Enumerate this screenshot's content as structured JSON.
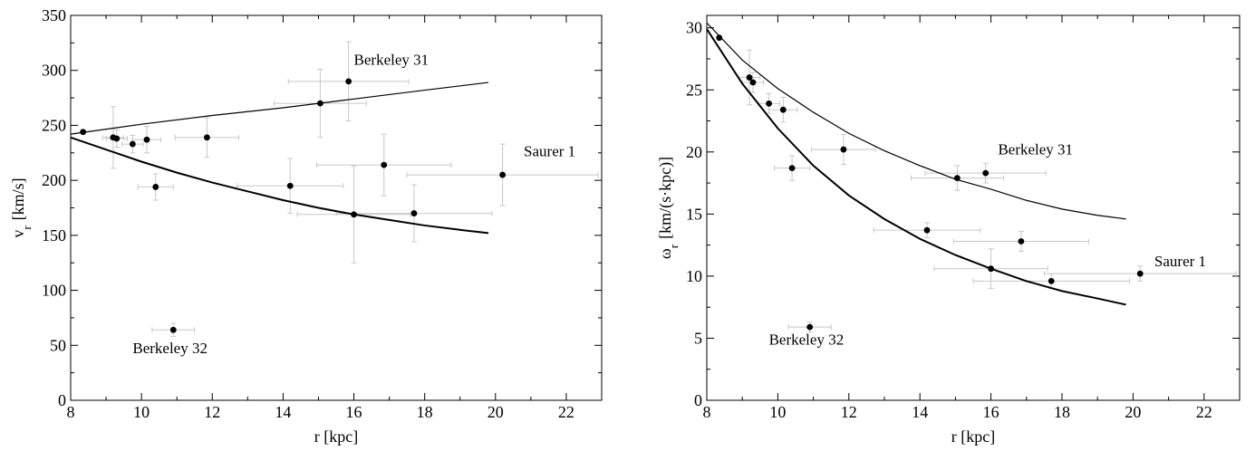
{
  "chart_data": [
    {
      "type": "scatter",
      "xlabel": "r [kpc]",
      "ylabel_main": "v",
      "ylabel_sub": "r",
      "ylabel_unit": "[km/s]",
      "xlim": [
        8,
        23
      ],
      "ylim": [
        0,
        350
      ],
      "x_ticks": [
        8,
        10,
        12,
        14,
        16,
        18,
        20,
        22
      ],
      "y_ticks": [
        0,
        50,
        100,
        150,
        200,
        250,
        300,
        350
      ],
      "grid": false,
      "points": [
        {
          "x": 8.35,
          "y": 244,
          "xerr": 0.0,
          "yerr": 0
        },
        {
          "x": 9.2,
          "y": 239,
          "xerr": 0.3,
          "yerr": 28
        },
        {
          "x": 9.3,
          "y": 238,
          "xerr": 0.3,
          "yerr": 8
        },
        {
          "x": 9.75,
          "y": 233,
          "xerr": 0.3,
          "yerr": 8
        },
        {
          "x": 10.15,
          "y": 237,
          "xerr": 0.4,
          "yerr": 12
        },
        {
          "x": 10.4,
          "y": 194,
          "xerr": 0.5,
          "yerr": 12
        },
        {
          "x": 10.9,
          "y": 64,
          "xerr": 0.6,
          "yerr": 6
        },
        {
          "x": 11.85,
          "y": 239,
          "xerr": 0.9,
          "yerr": 18
        },
        {
          "x": 14.2,
          "y": 195,
          "xerr": 1.5,
          "yerr": 25
        },
        {
          "x": 15.05,
          "y": 270,
          "xerr": 1.3,
          "yerr": 31
        },
        {
          "x": 15.85,
          "y": 290,
          "xerr": 1.7,
          "yerr": 36
        },
        {
          "x": 16.0,
          "y": 169,
          "xerr": 1.6,
          "yerr": 44
        },
        {
          "x": 16.85,
          "y": 214,
          "xerr": 1.9,
          "yerr": 28
        },
        {
          "x": 17.7,
          "y": 170,
          "xerr": 2.2,
          "yerr": 26
        },
        {
          "x": 20.2,
          "y": 205,
          "xerr": 2.7,
          "yerr": 28
        }
      ],
      "curves": [
        {
          "kind": "thin",
          "x": [
            8.0,
            10.0,
            12.0,
            14.0,
            16.0,
            18.0,
            19.8
          ],
          "y": [
            242,
            251,
            259,
            266,
            274,
            282,
            289
          ]
        },
        {
          "kind": "thick",
          "x": [
            8.0,
            9.0,
            10.0,
            11.0,
            12.0,
            13.0,
            14.0,
            15.0,
            16.0,
            17.0,
            18.0,
            19.0,
            19.8
          ],
          "y": [
            239,
            228,
            217,
            207,
            198,
            190,
            182,
            175,
            169,
            164,
            159,
            155,
            152
          ]
        }
      ],
      "annotations": [
        {
          "text": "Berkeley 31",
          "x": 16.0,
          "y": 305
        },
        {
          "text": "Saurer 1",
          "x": 20.8,
          "y": 222
        },
        {
          "text": "Berkeley 32",
          "x": 9.75,
          "y": 43
        }
      ]
    },
    {
      "type": "scatter",
      "xlabel": "r [kpc]",
      "ylabel_main": "ω",
      "ylabel_sub": "r",
      "ylabel_unit": "[km/(s·kpc)]",
      "xlim": [
        8,
        23
      ],
      "ylim": [
        0,
        31
      ],
      "x_ticks": [
        8,
        10,
        12,
        14,
        16,
        18,
        20,
        22
      ],
      "y_ticks": [
        0,
        5,
        10,
        15,
        20,
        25,
        30
      ],
      "grid": false,
      "points": [
        {
          "x": 8.35,
          "y": 29.2,
          "xerr": 0.0,
          "yerr": 0
        },
        {
          "x": 9.2,
          "y": 26.0,
          "xerr": 0.3,
          "yerr": 2.2
        },
        {
          "x": 9.3,
          "y": 25.6,
          "xerr": 0.3,
          "yerr": 0.8
        },
        {
          "x": 9.75,
          "y": 23.9,
          "xerr": 0.3,
          "yerr": 0.8
        },
        {
          "x": 10.15,
          "y": 23.4,
          "xerr": 0.4,
          "yerr": 1.0
        },
        {
          "x": 10.4,
          "y": 18.7,
          "xerr": 0.5,
          "yerr": 1.0
        },
        {
          "x": 10.9,
          "y": 5.9,
          "xerr": 0.6,
          "yerr": 0.4
        },
        {
          "x": 11.85,
          "y": 20.2,
          "xerr": 0.9,
          "yerr": 1.2
        },
        {
          "x": 14.2,
          "y": 13.7,
          "xerr": 1.5,
          "yerr": 0.6
        },
        {
          "x": 15.05,
          "y": 17.9,
          "xerr": 1.3,
          "yerr": 1.0
        },
        {
          "x": 15.85,
          "y": 18.3,
          "xerr": 1.7,
          "yerr": 0.8
        },
        {
          "x": 16.0,
          "y": 10.6,
          "xerr": 1.6,
          "yerr": 1.6
        },
        {
          "x": 16.85,
          "y": 12.8,
          "xerr": 1.9,
          "yerr": 0.8
        },
        {
          "x": 17.7,
          "y": 9.6,
          "xerr": 2.2,
          "yerr": 0.6
        },
        {
          "x": 20.2,
          "y": 10.2,
          "xerr": 2.7,
          "yerr": 0.6
        }
      ],
      "curves": [
        {
          "kind": "thin",
          "x": [
            8.0,
            9.0,
            10.0,
            11.0,
            12.0,
            13.0,
            14.0,
            15.0,
            16.0,
            17.0,
            18.0,
            19.0,
            19.8
          ],
          "y": [
            30.4,
            27.4,
            25.1,
            23.2,
            21.5,
            20.1,
            18.9,
            17.8,
            17.0,
            16.1,
            15.4,
            14.9,
            14.6
          ]
        },
        {
          "kind": "thick",
          "x": [
            8.0,
            9.0,
            10.0,
            11.0,
            12.0,
            13.0,
            14.0,
            15.0,
            16.0,
            17.0,
            18.0,
            19.0,
            19.8
          ],
          "y": [
            29.9,
            25.5,
            21.9,
            18.9,
            16.5,
            14.6,
            13.0,
            11.7,
            10.6,
            9.6,
            8.8,
            8.2,
            7.7
          ]
        }
      ],
      "annotations": [
        {
          "text": "Berkeley 31",
          "x": 16.2,
          "y": 19.8
        },
        {
          "text": "Saurer 1",
          "x": 20.6,
          "y": 10.8
        },
        {
          "text": "Berkeley 32",
          "x": 9.75,
          "y": 4.5
        }
      ]
    }
  ]
}
